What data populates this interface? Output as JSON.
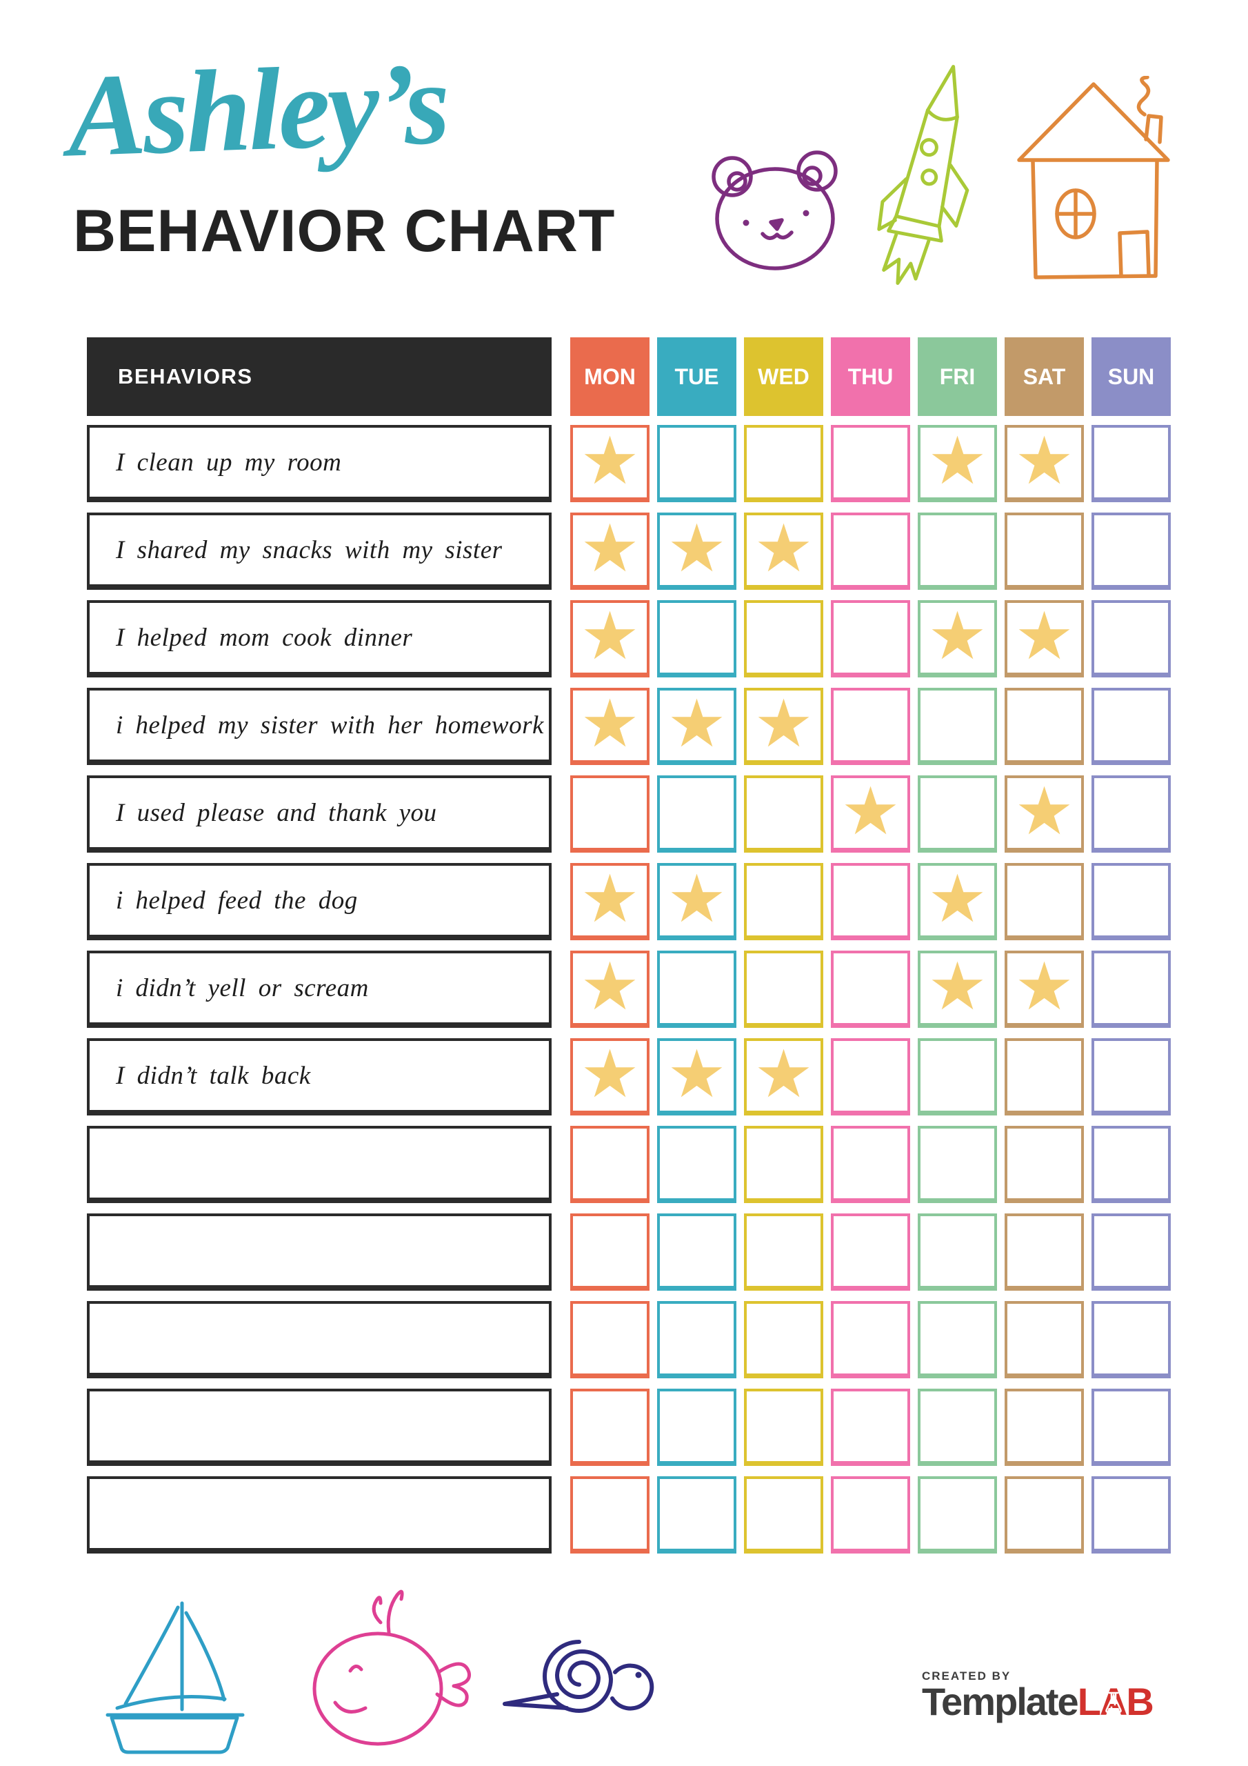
{
  "header": {
    "name_script": "Ashley’s",
    "title": "BEHAVIOR CHART"
  },
  "table": {
    "behaviors_header": "BEHAVIORS",
    "header_bg": "#2A2A2A",
    "star_glyph": "★",
    "star_color": "#F5CE74",
    "days": [
      {
        "label": "MON",
        "color": "#EA6B4D"
      },
      {
        "label": "TUE",
        "color": "#39ACC0"
      },
      {
        "label": "WED",
        "color": "#DDC32F"
      },
      {
        "label": "THU",
        "color": "#F171AC"
      },
      {
        "label": "FRI",
        "color": "#8BC89B"
      },
      {
        "label": "SAT",
        "color": "#C29A69"
      },
      {
        "label": "SUN",
        "color": "#8B8EC7"
      }
    ],
    "rows": [
      {
        "behavior": "I clean up my room",
        "stars": [
          1,
          0,
          0,
          0,
          1,
          1,
          0
        ]
      },
      {
        "behavior": "I shared my snacks with my sister",
        "stars": [
          1,
          1,
          1,
          0,
          0,
          0,
          0
        ]
      },
      {
        "behavior": "I helped mom cook dinner",
        "stars": [
          1,
          0,
          0,
          0,
          1,
          1,
          0
        ]
      },
      {
        "behavior": "i helped my sister with her homework",
        "stars": [
          1,
          1,
          1,
          0,
          0,
          0,
          0
        ]
      },
      {
        "behavior": "I used please and thank you",
        "stars": [
          0,
          0,
          0,
          1,
          0,
          1,
          0
        ]
      },
      {
        "behavior": "i helped feed the dog",
        "stars": [
          1,
          1,
          0,
          0,
          1,
          0,
          0
        ]
      },
      {
        "behavior": "i didn’t yell or scream",
        "stars": [
          1,
          0,
          0,
          0,
          1,
          1,
          0
        ]
      },
      {
        "behavior": "I didn’t talk back",
        "stars": [
          1,
          1,
          1,
          0,
          0,
          0,
          0
        ]
      },
      {
        "behavior": "",
        "stars": [
          0,
          0,
          0,
          0,
          0,
          0,
          0
        ]
      },
      {
        "behavior": "",
        "stars": [
          0,
          0,
          0,
          0,
          0,
          0,
          0
        ]
      },
      {
        "behavior": "",
        "stars": [
          0,
          0,
          0,
          0,
          0,
          0,
          0
        ]
      },
      {
        "behavior": "",
        "stars": [
          0,
          0,
          0,
          0,
          0,
          0,
          0
        ]
      },
      {
        "behavior": "",
        "stars": [
          0,
          0,
          0,
          0,
          0,
          0,
          0
        ]
      }
    ]
  },
  "doodles": {
    "title_color": "#38A8B8",
    "bear_color": "#7D2E7F",
    "rocket_color": "#A9C937",
    "house_color": "#E0883B",
    "sailboat_color": "#2E9EC6",
    "whale_color": "#DE3F93",
    "snail_color": "#2F2B7E"
  },
  "footer_logo": {
    "created_by": "CREATED BY",
    "brand_gray": "Template",
    "brand_red": "LAB",
    "gray_color": "#3D3D3D",
    "red_color": "#D2322D"
  }
}
